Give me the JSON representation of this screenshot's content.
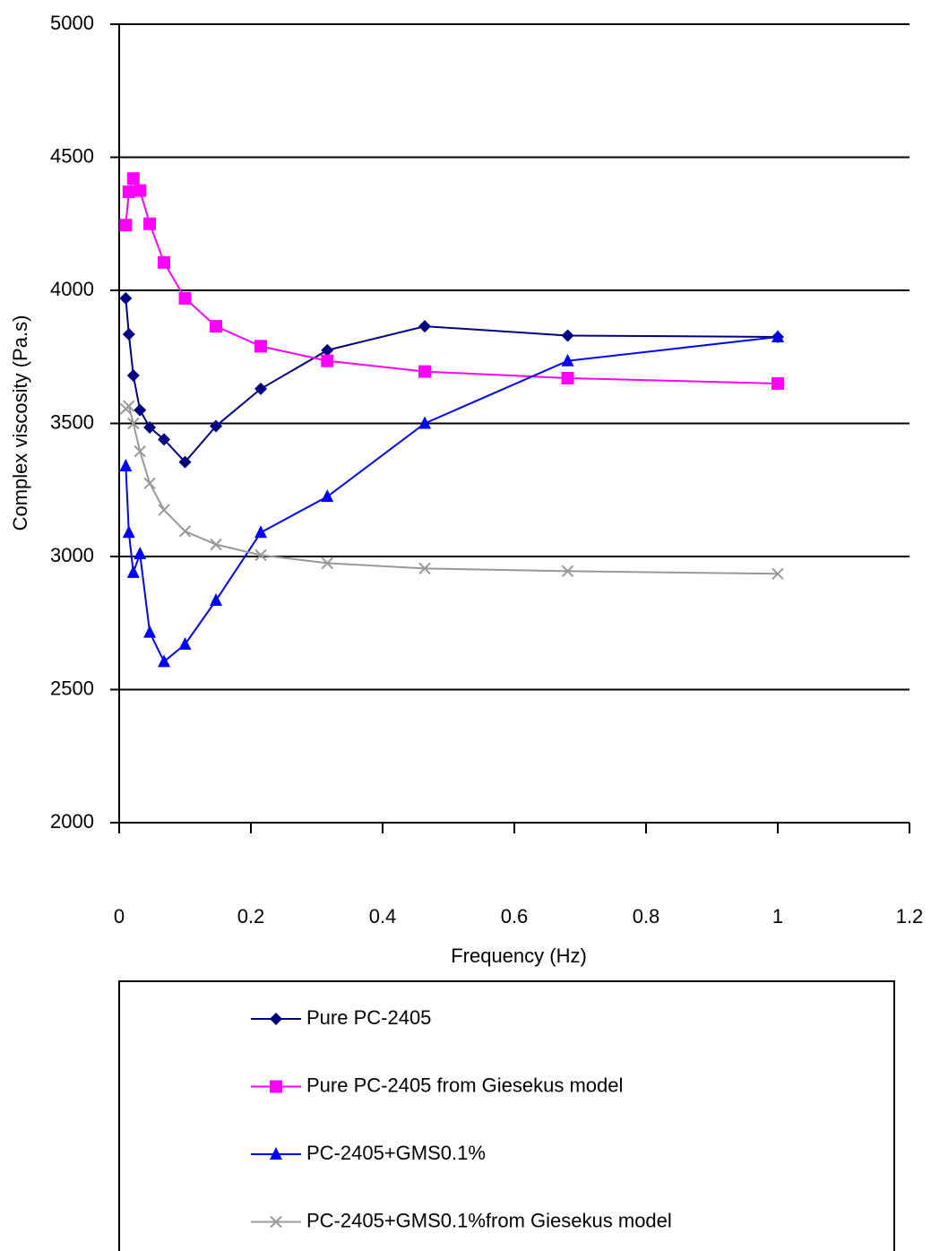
{
  "chart_data": {
    "type": "line",
    "ylabel": "Complex viscosity (Pa.s)",
    "xlabel": "Frequency (Hz)",
    "x": [
      0.01,
      0.0147,
      0.0215,
      0.0316,
      0.0464,
      0.0681,
      0.1,
      0.147,
      0.215,
      0.316,
      0.464,
      0.681,
      1
    ],
    "series": [
      {
        "name": "Pure PC-2405",
        "color": "#000080",
        "marker": "diamond",
        "values": [
          3970,
          3835,
          3680,
          3550,
          3485,
          3440,
          3355,
          3490,
          3630,
          3775,
          3865,
          3830,
          3825
        ]
      },
      {
        "name": "Pure PC-2405 from Giesekus model",
        "color": "#ff00ff",
        "marker": "square",
        "values": [
          4245,
          4370,
          4420,
          4375,
          4250,
          4105,
          3970,
          3865,
          3790,
          3735,
          3695,
          3670,
          3650
        ]
      },
      {
        "name": "PC-2405+GMS0.1%",
        "color": "#0000ff",
        "marker": "triangle",
        "values": [
          3340,
          3090,
          2940,
          3010,
          2715,
          2605,
          2670,
          2835,
          3090,
          3225,
          3500,
          3735,
          3825
        ]
      },
      {
        "name": "PC-2405+GMS0.1%from Giesekus model",
        "color": "#999999",
        "marker": "x",
        "values": [
          3555,
          3565,
          3500,
          3395,
          3275,
          3175,
          3095,
          3045,
          3005,
          2975,
          2955,
          2945,
          2935
        ]
      }
    ],
    "xlim": [
      0,
      1.2
    ],
    "xticks": [
      0,
      0.2,
      0.4,
      0.6,
      0.8,
      1,
      1.2
    ],
    "ylim": [
      2000,
      5000
    ],
    "yticks": [
      2000,
      2500,
      3000,
      3500,
      4000,
      4500,
      5000
    ],
    "grid": true,
    "legend": "bottom"
  }
}
